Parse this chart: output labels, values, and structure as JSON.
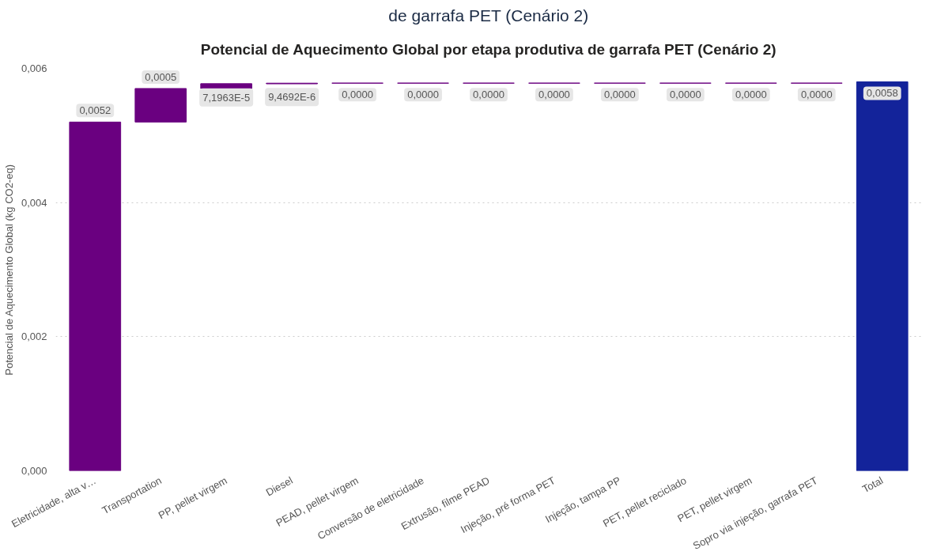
{
  "chart_data": {
    "type": "bar",
    "title": "Potencial de Aquecimento Global por etapa produtiva de garrafa PET (Cenário 2)",
    "annotations": [
      "de garrafa PET (Cenário 2)"
    ],
    "ylabel": "Potencial de Aquecimento Global (kg CO2-eq)",
    "categories": [
      "Eletricidade, alta v…",
      "Transportation",
      "PP, pellet virgem",
      "Diesel",
      "PEAD, pellet virgem",
      "Conversão de eletricidade",
      "Extrusão, filme PEAD",
      "Injeção, pré forma PET",
      "Injeção, tampa PP",
      "PET, pellet reciclado",
      "PET, pellet virgem",
      "Sopro via injeção, garrafa PET",
      "Total"
    ],
    "values": [
      0.0052,
      0.0005,
      7.1963e-05,
      9.4692e-06,
      0,
      0,
      0,
      0,
      0,
      0,
      0,
      0,
      0.0058
    ],
    "base": [
      0,
      0.0052,
      0.0057,
      0.00577,
      0.00578,
      0.00578,
      0.00578,
      0.00578,
      0.00578,
      0.00578,
      0.00578,
      0.00578,
      0
    ],
    "colors": [
      "#6a0080",
      "#6a0080",
      "#6a0080",
      "#6a0080",
      "#6a0080",
      "#6a0080",
      "#6a0080",
      "#6a0080",
      "#6a0080",
      "#6a0080",
      "#6a0080",
      "#6a0080",
      "#13239a"
    ],
    "value_labels": [
      "0,0052",
      "0,0005",
      "7,1963E-5",
      "9,4692E-6",
      "0,0000",
      "0,0000",
      "0,0000",
      "0,0000",
      "0,0000",
      "0,0000",
      "0,0000",
      "0,0000",
      "0,0058"
    ],
    "ylim": [
      0,
      0.006
    ],
    "yticks": [
      {
        "value": 0,
        "label": "0,000"
      },
      {
        "value": 0.002,
        "label": "0,002"
      },
      {
        "value": 0.004,
        "label": "0,004"
      },
      {
        "value": 0.006,
        "label": "0,006"
      }
    ],
    "grid": "y",
    "legend": false
  }
}
